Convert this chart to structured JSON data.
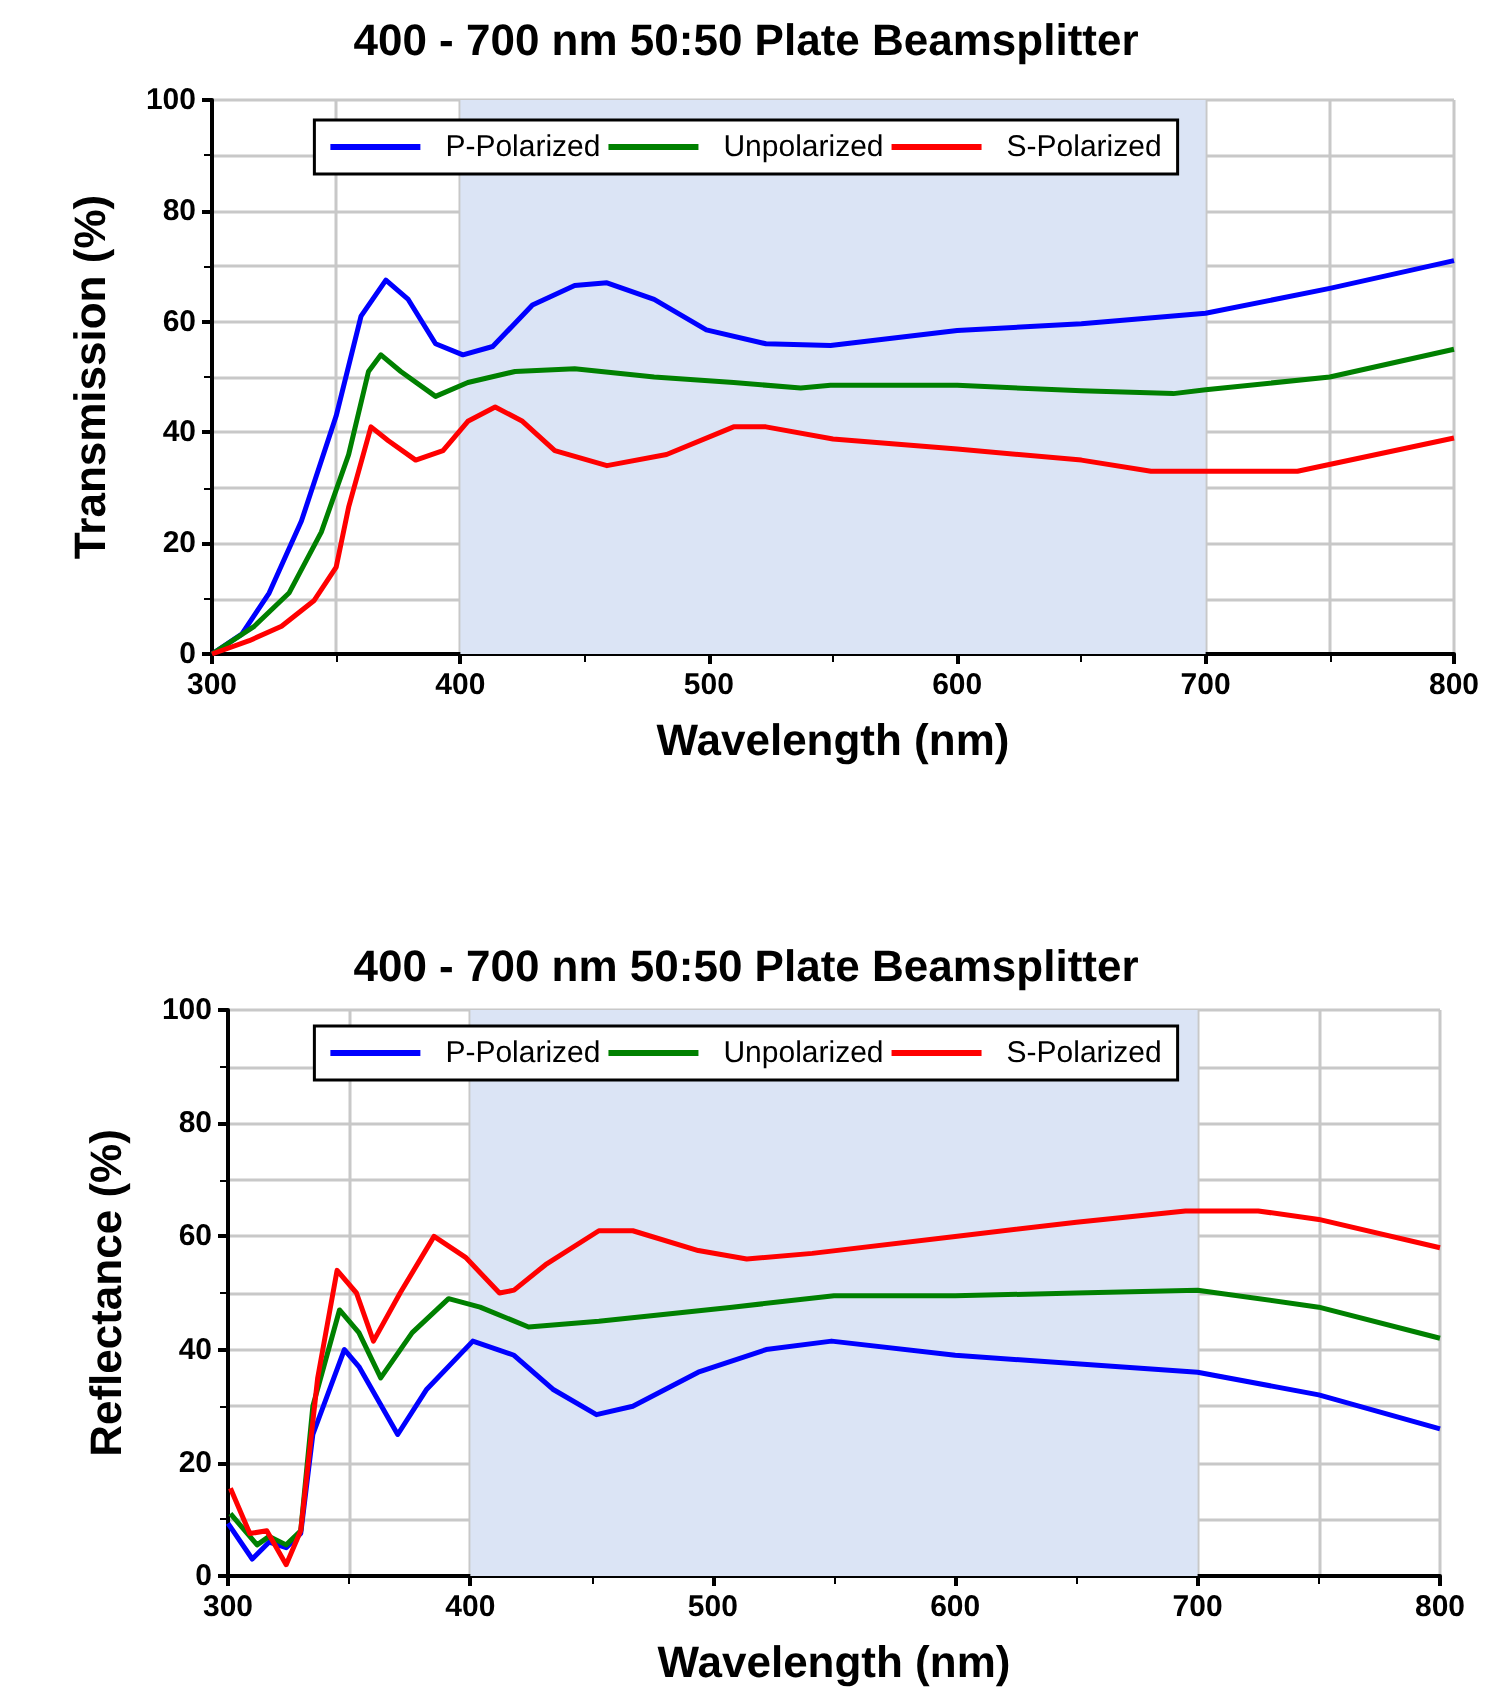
{
  "chart_data": [
    {
      "type": "line",
      "title": "400 - 700 nm 50:50 Plate Beamsplitter",
      "xlabel": "Wavelength (nm)",
      "ylabel": "Transmission (%)",
      "xlim": [
        300,
        800
      ],
      "ylim": [
        0,
        100
      ],
      "xticks": [
        300,
        400,
        500,
        600,
        700,
        800
      ],
      "yticks": [
        0,
        20,
        40,
        60,
        80,
        100
      ],
      "grid": true,
      "legend": "top",
      "bands": [
        {
          "axis": "x",
          "from": 400,
          "to": 700,
          "color": "#dbe4f5"
        }
      ],
      "series": [
        {
          "name": "P-Polarized",
          "color": "#0000ff",
          "x": [
            300,
            312,
            323,
            336,
            350,
            360,
            370,
            379,
            390,
            401,
            413,
            429,
            446,
            459,
            478,
            499,
            523,
            549,
            600,
            650,
            700,
            750,
            800
          ],
          "values": [
            0,
            3.6,
            11,
            24,
            43,
            61,
            67.5,
            64,
            56,
            54,
            55.5,
            63,
            66.5,
            67,
            64,
            58.5,
            56,
            55.7,
            58.4,
            59.6,
            61.5,
            66,
            71
          ]
        },
        {
          "name": "Unpolarized",
          "color": "#008000",
          "x": [
            300,
            317,
            331,
            344,
            355,
            363,
            368,
            376,
            390,
            403,
            422,
            446,
            478,
            510,
            537,
            549,
            600,
            650,
            687,
            700,
            750,
            800
          ],
          "values": [
            0,
            5,
            11,
            22,
            36,
            51,
            54,
            51,
            46.5,
            49,
            51,
            51.5,
            50,
            49,
            48,
            48.5,
            48.5,
            47.5,
            47,
            47.7,
            50,
            55
          ]
        },
        {
          "name": "S-Polarized",
          "color": "#ff0000",
          "x": [
            300,
            315,
            328,
            341,
            350,
            355,
            364,
            371,
            382,
            393,
            403,
            414,
            425,
            438,
            459,
            483,
            510,
            523,
            550,
            600,
            650,
            678,
            737,
            800
          ],
          "values": [
            0,
            2.4,
            5,
            9.6,
            15.7,
            26.5,
            41,
            38.5,
            35,
            36.7,
            42,
            44.6,
            42,
            36.7,
            34,
            36,
            41,
            41,
            38.8,
            37,
            35,
            33,
            33,
            39
          ]
        }
      ]
    },
    {
      "type": "line",
      "title": "400 - 700 nm 50:50 Plate Beamsplitter",
      "xlabel": "Wavelength (nm)",
      "ylabel": "Reflectance (%)",
      "xlim": [
        300,
        800
      ],
      "ylim": [
        0,
        100
      ],
      "xticks": [
        300,
        400,
        500,
        600,
        700,
        800
      ],
      "yticks": [
        0,
        20,
        40,
        60,
        80,
        100
      ],
      "grid": true,
      "legend": "top",
      "bands": [
        {
          "axis": "x",
          "from": 400,
          "to": 700,
          "color": "#dbe4f5"
        }
      ],
      "series": [
        {
          "name": "P-Polarized",
          "color": "#0000ff",
          "x": [
            300,
            310,
            317,
            324,
            330,
            335,
            348,
            354,
            370,
            382,
            401,
            418,
            434,
            452,
            467,
            494,
            522,
            549,
            600,
            650,
            700,
            750,
            800
          ],
          "values": [
            9.3,
            3,
            6,
            5,
            7.5,
            25,
            40,
            37,
            25,
            33,
            41.5,
            39,
            33,
            28.5,
            30,
            36,
            40,
            41.5,
            39,
            37.5,
            36,
            32,
            26
          ]
        },
        {
          "name": "Unpolarized",
          "color": "#008000",
          "x": [
            301,
            312,
            317,
            324,
            330,
            335,
            346,
            354,
            363,
            376,
            391,
            404,
            424,
            453,
            508,
            550,
            600,
            650,
            700,
            750,
            800
          ],
          "values": [
            11,
            5.5,
            7,
            5.5,
            8,
            30,
            47,
            43,
            35,
            43,
            49,
            47.5,
            44,
            45,
            47.5,
            49.5,
            49.5,
            50,
            50.5,
            47.5,
            42
          ]
        },
        {
          "name": "S-Polarized",
          "color": "#ff0000",
          "x": [
            301,
            309,
            316,
            324,
            330,
            337,
            345,
            353,
            360,
            371,
            385,
            398,
            412,
            418,
            431,
            453,
            467,
            494,
            514,
            541,
            600,
            650,
            695,
            725,
            750,
            800
          ],
          "values": [
            15.5,
            7.5,
            8,
            2,
            8,
            35,
            54,
            50,
            41.5,
            50,
            60,
            56.3,
            50,
            50.5,
            55,
            61,
            61,
            57.5,
            56,
            57,
            60,
            62.5,
            64.5,
            64.5,
            63,
            58
          ]
        }
      ]
    }
  ]
}
